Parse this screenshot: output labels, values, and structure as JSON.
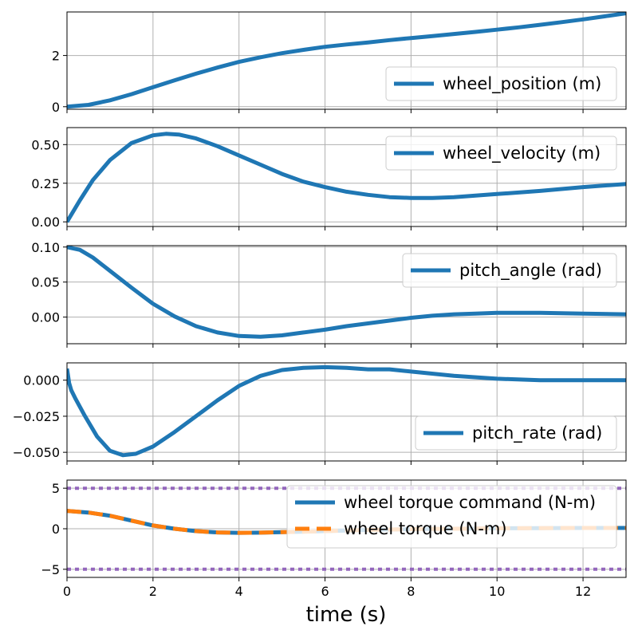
{
  "chart_data": [
    {
      "type": "line",
      "xlim": [
        0,
        13
      ],
      "ylim": [
        -0.1,
        3.7
      ],
      "yticks": [
        0,
        2
      ],
      "ytick_labels": [
        "0",
        "2"
      ],
      "grid": true,
      "legend_position": "lower-right",
      "series": [
        {
          "name": "wheel_position (m)",
          "color": "#1f77b4",
          "style": "solid",
          "x": [
            0,
            0.5,
            1,
            1.5,
            2,
            2.5,
            3,
            3.5,
            4,
            4.5,
            5,
            5.5,
            6,
            6.5,
            7,
            7.5,
            8,
            8.5,
            9,
            9.5,
            10,
            10.5,
            11,
            11.5,
            12,
            12.5,
            13
          ],
          "y": [
            0,
            0.07,
            0.25,
            0.49,
            0.76,
            1.03,
            1.29,
            1.53,
            1.75,
            1.93,
            2.09,
            2.22,
            2.34,
            2.43,
            2.51,
            2.6,
            2.68,
            2.76,
            2.84,
            2.92,
            3.01,
            3.1,
            3.2,
            3.3,
            3.41,
            3.53,
            3.65
          ]
        }
      ]
    },
    {
      "type": "line",
      "xlim": [
        0,
        13
      ],
      "ylim": [
        -0.03,
        0.61
      ],
      "yticks": [
        0,
        0.25,
        0.5
      ],
      "ytick_labels": [
        "0.00",
        "0.25",
        "0.50"
      ],
      "grid": true,
      "legend_position": "upper-right",
      "series": [
        {
          "name": "wheel_velocity (m)",
          "color": "#1f77b4",
          "style": "solid",
          "x": [
            0,
            0.3,
            0.6,
            1,
            1.5,
            2,
            2.3,
            2.6,
            3,
            3.5,
            4,
            4.5,
            5,
            5.5,
            6,
            6.5,
            7,
            7.5,
            8,
            8.5,
            9,
            9.5,
            10,
            11,
            12,
            13
          ],
          "y": [
            0,
            0.14,
            0.27,
            0.4,
            0.51,
            0.56,
            0.57,
            0.565,
            0.54,
            0.49,
            0.43,
            0.37,
            0.31,
            0.26,
            0.225,
            0.195,
            0.175,
            0.16,
            0.155,
            0.155,
            0.16,
            0.17,
            0.18,
            0.2,
            0.225,
            0.245
          ]
        }
      ]
    },
    {
      "type": "line",
      "xlim": [
        0,
        13
      ],
      "ylim": [
        -0.038,
        0.102
      ],
      "yticks": [
        0,
        0.05,
        0.1
      ],
      "ytick_labels": [
        "0.00",
        "0.05",
        "0.10"
      ],
      "grid": true,
      "legend_position": "upper-right",
      "series": [
        {
          "name": "pitch_angle (rad)",
          "color": "#1f77b4",
          "style": "solid",
          "x": [
            0,
            0.3,
            0.6,
            1,
            1.5,
            2,
            2.5,
            3,
            3.5,
            4,
            4.5,
            5,
            5.5,
            6,
            6.5,
            7,
            7.5,
            8,
            8.5,
            9,
            9.5,
            10,
            11,
            12,
            13
          ],
          "y": [
            0.1,
            0.096,
            0.085,
            0.066,
            0.042,
            0.019,
            0.001,
            -0.013,
            -0.022,
            -0.027,
            -0.028,
            -0.026,
            -0.022,
            -0.018,
            -0.013,
            -0.009,
            -0.005,
            -0.001,
            0.002,
            0.004,
            0.005,
            0.006,
            0.006,
            0.005,
            0.004
          ]
        }
      ]
    },
    {
      "type": "line",
      "xlim": [
        0,
        13
      ],
      "ylim": [
        -0.056,
        0.012
      ],
      "yticks": [
        0,
        -0.025,
        -0.05
      ],
      "ytick_labels": [
        "0.000",
        "−0.025",
        "−0.050"
      ],
      "grid": true,
      "legend_position": "lower-right",
      "series": [
        {
          "name": "pitch_rate (rad)",
          "color": "#1f77b4",
          "style": "solid",
          "x": [
            0,
            0.05,
            0.1,
            0.2,
            0.4,
            0.7,
            1,
            1.3,
            1.6,
            2,
            2.5,
            3,
            3.5,
            4,
            4.5,
            5,
            5.5,
            6,
            6.5,
            7,
            7.5,
            8,
            9,
            10,
            11,
            12,
            13
          ],
          "y": [
            0.008,
            -0.002,
            -0.007,
            -0.013,
            -0.024,
            -0.039,
            -0.049,
            -0.052,
            -0.051,
            -0.046,
            -0.036,
            -0.025,
            -0.014,
            -0.004,
            0.003,
            0.007,
            0.0085,
            0.009,
            0.0085,
            0.0075,
            0.0075,
            0.006,
            0.003,
            0.001,
            0,
            0,
            0
          ]
        }
      ]
    },
    {
      "type": "line",
      "xlim": [
        0,
        13
      ],
      "ylim": [
        -6,
        6
      ],
      "yticks": [
        5,
        0,
        -5
      ],
      "ytick_labels": [
        "5",
        "0",
        "−5"
      ],
      "xticks": [
        0,
        2,
        4,
        6,
        8,
        10,
        12
      ],
      "xtick_labels": [
        "0",
        "2",
        "4",
        "6",
        "8",
        "10",
        "12"
      ],
      "xlabel": "time (s)",
      "grid": true,
      "legend_position": "upper-right",
      "series": [
        {
          "name": "wheel torque command (N-m)",
          "color": "#1f77b4",
          "style": "solid",
          "x": [
            0,
            0.5,
            1,
            1.5,
            2,
            2.5,
            3,
            3.5,
            4,
            4.5,
            5,
            6,
            7,
            8,
            9,
            10,
            11,
            12,
            13
          ],
          "y": [
            2.2,
            2,
            1.6,
            1,
            0.4,
            0,
            -0.3,
            -0.45,
            -0.5,
            -0.48,
            -0.42,
            -0.3,
            -0.15,
            -0.05,
            0,
            0.05,
            0.08,
            0.1,
            0.1
          ]
        },
        {
          "name": "wheel torque (N-m)",
          "color": "#ff7f0e",
          "style": "dashed",
          "x": [
            0,
            0.5,
            1,
            1.5,
            2,
            2.5,
            3,
            3.5,
            4,
            4.5,
            5,
            6,
            7,
            8,
            9,
            10,
            11,
            12,
            13
          ],
          "y": [
            2.2,
            2,
            1.6,
            1,
            0.4,
            0,
            -0.3,
            -0.45,
            -0.5,
            -0.48,
            -0.42,
            -0.3,
            -0.15,
            -0.05,
            0,
            0.05,
            0.08,
            0.1,
            0.1
          ]
        },
        {
          "color": "#9467bd",
          "style": "dotted",
          "x": [
            0,
            13
          ],
          "y": [
            5,
            5
          ]
        },
        {
          "color": "#9467bd",
          "style": "dotted",
          "x": [
            0,
            13
          ],
          "y": [
            -5,
            -5
          ]
        }
      ]
    }
  ]
}
